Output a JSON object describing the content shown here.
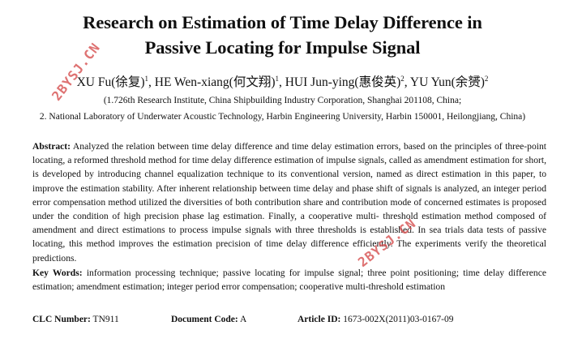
{
  "paper": {
    "title_line1": "Research on Estimation of Time Delay Difference in",
    "title_line2": "Passive Locating for Impulse Signal",
    "authors": [
      {
        "name": "XU Fu(徐复)",
        "sup": "1"
      },
      {
        "name": "HE Wen-xiang(何文翔)",
        "sup": "1"
      },
      {
        "name": "HUI Jun-ying(惠俊英)",
        "sup": "2"
      },
      {
        "name": "YU Yun(余赟)",
        "sup": "2"
      }
    ],
    "affiliation1": "(1.726th Research Institute, China Shipbuilding Industry Corporation, Shanghai 201108, China;",
    "affiliation2": "2. National Laboratory of Underwater Acoustic Technology, Harbin Engineering University, Harbin 150001, Heilongjiang, China)",
    "abstract_label": "Abstract:",
    "abstract_text": "Analyzed the relation between time delay difference and time delay estimation errors, based on the principles of three-point locating, a reformed threshold method for time delay difference estimation of impulse signals, called as amendment estimation for short, is developed by introducing channel equalization technique to its conventional version, named as direct estimation in this paper, to improve the estimation stability. After inherent relationship between time delay and phase shift of signals is analyzed, an integer period error compensation method utilized the diversities of both contribution share and contribution mode of concerned estimates is proposed under the condition of high precision phase lag estimation. Finally, a cooperative multi- threshold estimation method composed of amendment and direct estimations to process impulse signals with three thresholds is established. In sea trials data tests of passive locating, this method improves the estimation precision of time delay difference efficiently. The experiments verify the theoretical predictions.",
    "keywords_label": "Key Words:",
    "keywords_text": "information processing technique; passive locating for impulse signal; three point positioning; time delay difference estimation; amendment estimation; integer period error compensation; cooperative multi-threshold estimation",
    "clc_label": "CLC Number:",
    "clc_value": "TN911",
    "doc_code_label": "Document Code:",
    "doc_code_value": "A",
    "article_id_label": "Article ID:",
    "article_id_value": "1673-002X(2011)03-0167-09"
  },
  "watermarks": [
    "2BYSJ.CN",
    "2BYSJ.CN"
  ],
  "colors": {
    "text": "#111111",
    "watermark": "#d95a5a"
  }
}
